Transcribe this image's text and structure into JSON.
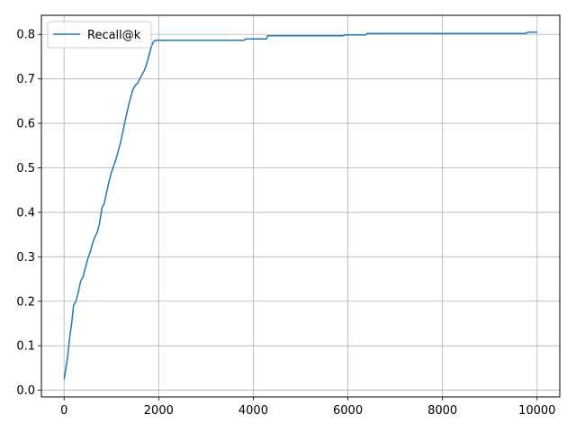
{
  "chart_data": {
    "type": "line",
    "title": "",
    "xlabel": "",
    "ylabel": "",
    "xlim": [
      -480,
      10480
    ],
    "ylim": [
      -0.015,
      0.843
    ],
    "xticks": [
      0,
      2000,
      4000,
      6000,
      8000,
      10000
    ],
    "xtick_labels": [
      "0",
      "2000",
      "4000",
      "6000",
      "8000",
      "10000"
    ],
    "yticks": [
      0.0,
      0.1,
      0.2,
      0.3,
      0.4,
      0.5,
      0.6,
      0.7,
      0.8
    ],
    "ytick_labels": [
      "0.0",
      "0.1",
      "0.2",
      "0.3",
      "0.4",
      "0.5",
      "0.6",
      "0.7",
      "0.8"
    ],
    "grid": true,
    "legend": "top-left",
    "series": [
      {
        "name": "Recall@k",
        "color": "#1f77b4",
        "x": [
          1,
          40,
          80,
          120,
          160,
          200,
          250,
          300,
          350,
          400,
          450,
          500,
          550,
          600,
          650,
          700,
          750,
          800,
          850,
          900,
          950,
          1000,
          1050,
          1100,
          1150,
          1200,
          1250,
          1300,
          1350,
          1400,
          1450,
          1500,
          1550,
          1600,
          1650,
          1700,
          1750,
          1800,
          1850,
          1900,
          1950,
          2000,
          2050,
          2100,
          2150,
          2200,
          3000,
          3800,
          3850,
          4280,
          4300,
          5900,
          5950,
          6380,
          6400,
          8000,
          9750,
          9800,
          10000
        ],
        "y": [
          0.025,
          0.05,
          0.08,
          0.12,
          0.15,
          0.19,
          0.2,
          0.22,
          0.245,
          0.255,
          0.275,
          0.295,
          0.31,
          0.33,
          0.345,
          0.355,
          0.375,
          0.41,
          0.42,
          0.445,
          0.47,
          0.49,
          0.505,
          0.52,
          0.54,
          0.56,
          0.585,
          0.61,
          0.635,
          0.655,
          0.675,
          0.685,
          0.69,
          0.7,
          0.71,
          0.72,
          0.735,
          0.755,
          0.775,
          0.785,
          0.787,
          0.787,
          0.787,
          0.787,
          0.787,
          0.787,
          0.787,
          0.787,
          0.79,
          0.79,
          0.797,
          0.797,
          0.799,
          0.799,
          0.802,
          0.802,
          0.802,
          0.805,
          0.805
        ]
      }
    ]
  }
}
